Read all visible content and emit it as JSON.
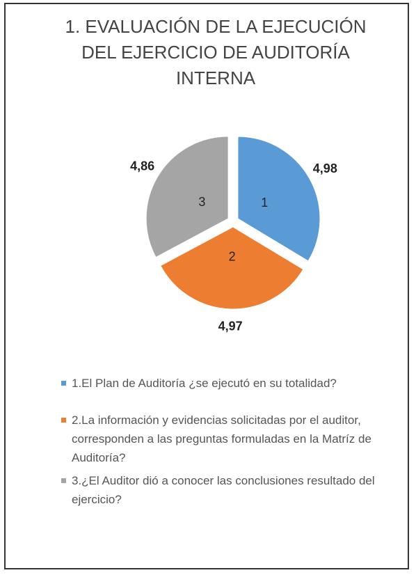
{
  "chart_data": {
    "type": "pie",
    "title": "1. EVALUACIÓN DE LA EJECUCIÓN DEL EJERCICIO DE AUDITORÍA INTERNA",
    "categories": [
      "1.El Plan de Auditoría ¿se ejecutó en su totalidad?",
      "2.La información y evidencias solicitadas por el auditor, corresponden a las preguntas formuladas en la Matríz de Auditoría?",
      "3.¿El Auditor dió a conocer las conclusiones resultado del ejercicio?"
    ],
    "slice_labels": [
      "1",
      "2",
      "3"
    ],
    "values": [
      4.98,
      4.97,
      4.86
    ],
    "value_labels": [
      "4,98",
      "4,97",
      "4,86"
    ],
    "colors": [
      "#5b9bd5",
      "#ed7d31",
      "#a5a5a5"
    ]
  }
}
